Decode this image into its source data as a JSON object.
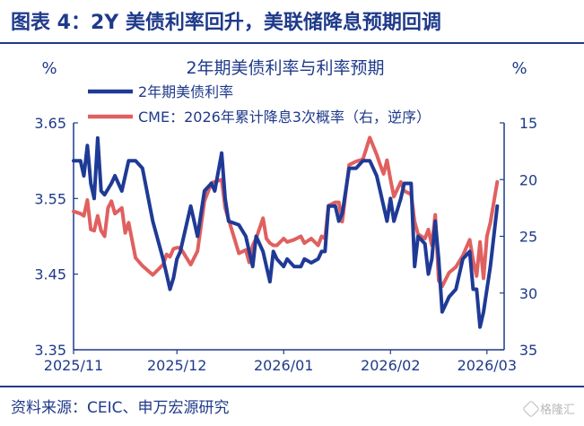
{
  "header": {
    "title": "图表 4：2Y 美债利率回升，美联储降息预期回调"
  },
  "footer": {
    "source": "资料来源：CEIC、申万宏源研究",
    "watermark": "格隆汇"
  },
  "colors": {
    "brand": "#1f3a8a",
    "series1": "#1f3a96",
    "series2": "#e06060",
    "axis": "#1f3a8a"
  },
  "chart_data": {
    "type": "line",
    "title": "2年期美债利率与利率预期",
    "left_unit": "%",
    "right_unit": "%",
    "y_left": {
      "range": [
        3.35,
        3.65
      ],
      "ticks": [
        "3.65",
        "3.55",
        "3.45",
        "3.35"
      ],
      "tick_values": [
        3.65,
        3.55,
        3.45,
        3.35
      ]
    },
    "y_right": {
      "range": [
        15,
        35
      ],
      "reversed": true,
      "ticks": [
        "15",
        "20",
        "25",
        "30",
        "35"
      ],
      "tick_values": [
        15,
        20,
        25,
        30,
        35
      ]
    },
    "x_axis": {
      "range": [
        "2025-11-01",
        "2026-03-06"
      ],
      "ticks": [
        {
          "label": "2025/11",
          "date": "2025-11-01"
        },
        {
          "label": "2025/12",
          "date": "2025-12-01"
        },
        {
          "label": "2026/01",
          "date": "2026-01-01"
        },
        {
          "label": "2026/02",
          "date": "2026-02-01"
        },
        {
          "label": "2026/03",
          "date": "2026-03-01"
        }
      ]
    },
    "legend_position": "top-left",
    "grid": false,
    "series": [
      {
        "name": "2年期美债利率",
        "axis": "left",
        "points": [
          [
            "2025-11-01",
            3.6
          ],
          [
            "2025-11-03",
            3.6
          ],
          [
            "2025-11-04",
            3.58
          ],
          [
            "2025-11-05",
            3.62
          ],
          [
            "2025-11-06",
            3.57
          ],
          [
            "2025-11-07",
            3.55
          ],
          [
            "2025-11-08",
            3.63
          ],
          [
            "2025-11-09",
            3.56
          ],
          [
            "2025-11-10",
            3.555
          ],
          [
            "2025-11-12",
            3.57
          ],
          [
            "2025-11-13",
            3.58
          ],
          [
            "2025-11-15",
            3.56
          ],
          [
            "2025-11-16",
            3.58
          ],
          [
            "2025-11-17",
            3.6
          ],
          [
            "2025-11-19",
            3.6
          ],
          [
            "2025-11-21",
            3.59
          ],
          [
            "2025-11-24",
            3.52
          ],
          [
            "2025-11-27",
            3.47
          ],
          [
            "2025-11-28",
            3.45
          ],
          [
            "2025-11-29",
            3.43
          ],
          [
            "2025-11-30",
            3.445
          ],
          [
            "2025-12-01",
            3.47
          ],
          [
            "2025-12-02",
            3.48
          ],
          [
            "2025-12-05",
            3.54
          ],
          [
            "2025-12-07",
            3.5
          ],
          [
            "2025-12-09",
            3.56
          ],
          [
            "2025-12-11",
            3.57
          ],
          [
            "2025-12-12",
            3.56
          ],
          [
            "2025-12-14",
            3.61
          ],
          [
            "2025-12-15",
            3.55
          ],
          [
            "2025-12-16",
            3.52
          ],
          [
            "2025-12-19",
            3.515
          ],
          [
            "2025-12-21",
            3.5
          ],
          [
            "2025-12-22",
            3.48
          ],
          [
            "2025-12-23",
            3.46
          ],
          [
            "2025-12-24",
            3.5
          ],
          [
            "2025-12-26",
            3.48
          ],
          [
            "2025-12-27",
            3.46
          ],
          [
            "2025-12-28",
            3.44
          ],
          [
            "2025-12-29",
            3.48
          ],
          [
            "2025-12-30",
            3.47
          ],
          [
            "2026-01-01",
            3.46
          ],
          [
            "2026-01-02",
            3.47
          ],
          [
            "2026-01-04",
            3.46
          ],
          [
            "2026-01-06",
            3.46
          ],
          [
            "2026-01-07",
            3.47
          ],
          [
            "2026-01-09",
            3.465
          ],
          [
            "2026-01-11",
            3.47
          ],
          [
            "2026-01-12",
            3.48
          ],
          [
            "2026-01-13",
            3.48
          ],
          [
            "2026-01-14",
            3.54
          ],
          [
            "2026-01-16",
            3.54
          ],
          [
            "2026-01-17",
            3.52
          ],
          [
            "2026-01-18",
            3.53
          ],
          [
            "2026-01-20",
            3.59
          ],
          [
            "2026-01-22",
            3.59
          ],
          [
            "2026-01-24",
            3.6
          ],
          [
            "2026-01-26",
            3.6
          ],
          [
            "2026-01-28",
            3.58
          ],
          [
            "2026-01-29",
            3.56
          ],
          [
            "2026-01-30",
            3.54
          ],
          [
            "2026-01-31",
            3.52
          ],
          [
            "2026-02-01",
            3.55
          ],
          [
            "2026-02-02",
            3.52
          ],
          [
            "2026-02-04",
            3.55
          ],
          [
            "2026-02-05",
            3.57
          ],
          [
            "2026-02-07",
            3.57
          ],
          [
            "2026-02-08",
            3.46
          ],
          [
            "2026-02-09",
            3.5
          ],
          [
            "2026-02-11",
            3.49
          ],
          [
            "2026-02-12",
            3.45
          ],
          [
            "2026-02-13",
            3.47
          ],
          [
            "2026-02-14",
            3.52
          ],
          [
            "2026-02-15",
            3.47
          ],
          [
            "2026-02-16",
            3.4
          ],
          [
            "2026-02-18",
            3.42
          ],
          [
            "2026-02-20",
            3.43
          ],
          [
            "2026-02-22",
            3.47
          ],
          [
            "2026-02-24",
            3.48
          ],
          [
            "2026-02-25",
            3.43
          ],
          [
            "2026-02-26",
            3.43
          ],
          [
            "2026-02-27",
            3.38
          ],
          [
            "2026-02-28",
            3.4
          ],
          [
            "2026-03-01",
            3.43
          ],
          [
            "2026-03-02",
            3.46
          ],
          [
            "2026-03-04",
            3.54
          ]
        ]
      },
      {
        "name": "CME：2026年累计降息3次概率（右，逆序）",
        "axis": "right",
        "points": [
          [
            "2025-11-01",
            22.8
          ],
          [
            "2025-11-03",
            23.0
          ],
          [
            "2025-11-04",
            23.2
          ],
          [
            "2025-11-05",
            21.8
          ],
          [
            "2025-11-06",
            24.4
          ],
          [
            "2025-11-07",
            24.5
          ],
          [
            "2025-11-08",
            23.2
          ],
          [
            "2025-11-09",
            24.5
          ],
          [
            "2025-11-10",
            25.0
          ],
          [
            "2025-11-11",
            22.5
          ],
          [
            "2025-11-12",
            21.9
          ],
          [
            "2025-11-13",
            23.0
          ],
          [
            "2025-11-15",
            22.5
          ],
          [
            "2025-11-16",
            24.7
          ],
          [
            "2025-11-17",
            23.8
          ],
          [
            "2025-11-19",
            26.9
          ],
          [
            "2025-11-21",
            27.6
          ],
          [
            "2025-11-24",
            28.4
          ],
          [
            "2025-11-27",
            27.5
          ],
          [
            "2025-11-28",
            26.6
          ],
          [
            "2025-11-29",
            26.8
          ],
          [
            "2025-11-30",
            26.1
          ],
          [
            "2025-12-01",
            26.0
          ],
          [
            "2025-12-02",
            26.0
          ],
          [
            "2025-12-05",
            27.5
          ],
          [
            "2025-12-07",
            26.3
          ],
          [
            "2025-12-09",
            21.9
          ],
          [
            "2025-12-11",
            20.3
          ],
          [
            "2025-12-12",
            20.2
          ],
          [
            "2025-12-14",
            20.0
          ],
          [
            "2025-12-15",
            22.5
          ],
          [
            "2025-12-16",
            23.5
          ],
          [
            "2025-12-19",
            26.5
          ],
          [
            "2025-12-21",
            26.2
          ],
          [
            "2025-12-22",
            27.3
          ],
          [
            "2025-12-23",
            25.8
          ],
          [
            "2025-12-24",
            25.2
          ],
          [
            "2025-12-26",
            23.4
          ],
          [
            "2025-12-27",
            25.2
          ],
          [
            "2025-12-28",
            25.6
          ],
          [
            "2025-12-29",
            25.8
          ],
          [
            "2025-12-30",
            25.8
          ],
          [
            "2026-01-01",
            25.2
          ],
          [
            "2026-01-02",
            25.5
          ],
          [
            "2026-01-04",
            25.3
          ],
          [
            "2026-01-06",
            25.0
          ],
          [
            "2026-01-07",
            25.6
          ],
          [
            "2026-01-09",
            25.2
          ],
          [
            "2026-01-11",
            25.8
          ],
          [
            "2026-01-12",
            25.0
          ],
          [
            "2026-01-13",
            25.2
          ],
          [
            "2026-01-14",
            22.3
          ],
          [
            "2026-01-16",
            22.0
          ],
          [
            "2026-01-17",
            22.0
          ],
          [
            "2026-01-18",
            23.7
          ],
          [
            "2026-01-20",
            18.7
          ],
          [
            "2026-01-22",
            18.4
          ],
          [
            "2026-01-24",
            18.2
          ],
          [
            "2026-01-26",
            16.3
          ],
          [
            "2026-01-28",
            17.8
          ],
          [
            "2026-01-29",
            18.7
          ],
          [
            "2026-01-30",
            19.5
          ],
          [
            "2026-01-31",
            18.3
          ],
          [
            "2026-02-01",
            20.0
          ],
          [
            "2026-02-02",
            21.5
          ],
          [
            "2026-02-04",
            20.2
          ],
          [
            "2026-02-05",
            21.0
          ],
          [
            "2026-02-07",
            21.3
          ],
          [
            "2026-02-08",
            23.7
          ],
          [
            "2026-02-09",
            24.8
          ],
          [
            "2026-02-11",
            25.2
          ],
          [
            "2026-02-12",
            24.4
          ],
          [
            "2026-02-13",
            25.8
          ],
          [
            "2026-02-14",
            23.1
          ],
          [
            "2026-02-15",
            28.9
          ],
          [
            "2026-02-16",
            29.4
          ],
          [
            "2026-02-18",
            28.2
          ],
          [
            "2026-02-20",
            27.7
          ],
          [
            "2026-02-22",
            26.7
          ],
          [
            "2026-02-24",
            25.3
          ],
          [
            "2026-02-25",
            27.1
          ],
          [
            "2026-02-26",
            28.5
          ],
          [
            "2026-02-27",
            25.5
          ],
          [
            "2026-02-28",
            28.7
          ],
          [
            "2026-03-01",
            25.0
          ],
          [
            "2026-03-02",
            23.8
          ],
          [
            "2026-03-04",
            20.2
          ]
        ]
      }
    ]
  }
}
